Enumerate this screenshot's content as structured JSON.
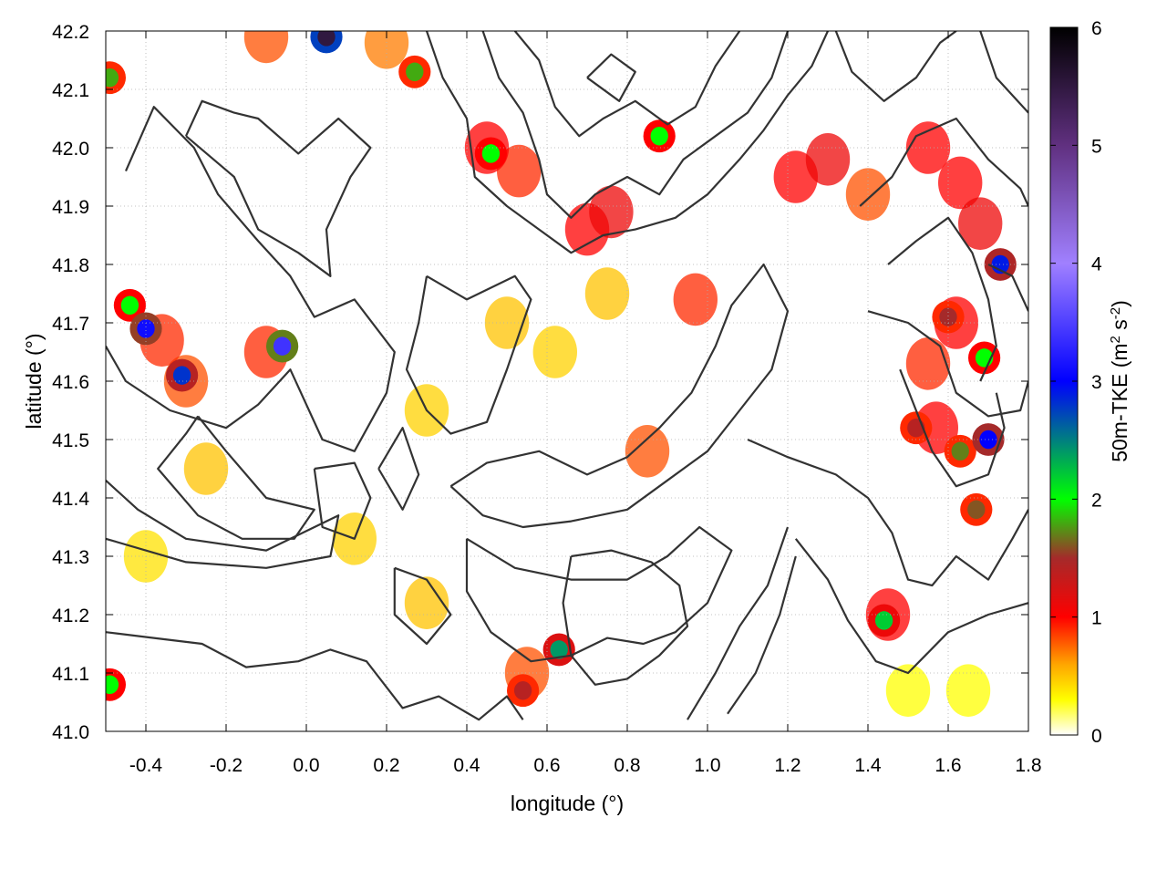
{
  "chart_data": {
    "type": "heatmap",
    "title": "",
    "xlabel": "longitude (°)",
    "ylabel": "latitude (°)",
    "colorbar_label_main": "50m-TKE (m",
    "colorbar_label_sup1": "2",
    "colorbar_label_mid": " s",
    "colorbar_label_sup2": "-2",
    "colorbar_label_end": ")",
    "xlim": [
      -0.5,
      1.8
    ],
    "ylim": [
      41.0,
      42.2
    ],
    "zlim": [
      0,
      6
    ],
    "grid": true,
    "x_ticks": [
      "-0.4",
      "-0.2",
      "0.0",
      "0.2",
      "0.4",
      "0.6",
      "0.8",
      "1.0",
      "1.2",
      "1.4",
      "1.6",
      "1.8"
    ],
    "x_tick_values": [
      -0.4,
      -0.2,
      0.0,
      0.2,
      0.4,
      0.6,
      0.8,
      1.0,
      1.2,
      1.4,
      1.6,
      1.8
    ],
    "y_ticks": [
      "41.0",
      "41.1",
      "41.2",
      "41.3",
      "41.4",
      "41.5",
      "41.6",
      "41.7",
      "41.8",
      "41.9",
      "42.0",
      "42.1",
      "42.2"
    ],
    "y_tick_values": [
      41.0,
      41.1,
      41.2,
      41.3,
      41.4,
      41.5,
      41.6,
      41.7,
      41.8,
      41.9,
      42.0,
      42.1,
      42.2
    ],
    "colorbar_ticks": [
      "0",
      "1",
      "2",
      "3",
      "4",
      "5",
      "6"
    ],
    "colorbar_tick_values": [
      0,
      1,
      2,
      3,
      4,
      5,
      6
    ],
    "colormap": [
      {
        "value": 0.0,
        "color": "#ffffff"
      },
      {
        "value": 0.3,
        "color": "#ffff00"
      },
      {
        "value": 0.6,
        "color": "#ffa500"
      },
      {
        "value": 1.0,
        "color": "#ff0000"
      },
      {
        "value": 1.5,
        "color": "#a52a2a"
      },
      {
        "value": 2.0,
        "color": "#00ff00"
      },
      {
        "value": 3.0,
        "color": "#0000ff"
      },
      {
        "value": 4.0,
        "color": "#a080ff"
      },
      {
        "value": 5.0,
        "color": "#603080"
      },
      {
        "value": 6.0,
        "color": "#000000"
      }
    ],
    "hotspots": [
      {
        "lon": -0.4,
        "lat": 41.69,
        "value": 3.1
      },
      {
        "lon": -0.44,
        "lat": 41.73,
        "value": 2.0
      },
      {
        "lon": -0.31,
        "lat": 41.61,
        "value": 2.8
      },
      {
        "lon": -0.06,
        "lat": 41.66,
        "value": 3.4
      },
      {
        "lon": 0.05,
        "lat": 42.19,
        "value": 5.5
      },
      {
        "lon": 0.46,
        "lat": 41.99,
        "value": 2.0
      },
      {
        "lon": 0.27,
        "lat": 42.13,
        "value": 1.8
      },
      {
        "lon": 0.63,
        "lat": 41.14,
        "value": 2.4
      },
      {
        "lon": 0.88,
        "lat": 42.02,
        "value": 2.0
      },
      {
        "lon": 1.44,
        "lat": 41.19,
        "value": 2.2
      },
      {
        "lon": 1.73,
        "lat": 41.8,
        "value": 2.9
      },
      {
        "lon": 1.7,
        "lat": 41.5,
        "value": 3.0
      },
      {
        "lon": 1.69,
        "lat": 41.64,
        "value": 2.0
      },
      {
        "lon": 1.6,
        "lat": 41.71,
        "value": 1.5
      },
      {
        "lon": -0.49,
        "lat": 41.08,
        "value": 2.0
      },
      {
        "lon": -0.49,
        "lat": 42.12,
        "value": 1.8
      },
      {
        "lon": 0.54,
        "lat": 41.07,
        "value": 1.4
      },
      {
        "lon": 1.52,
        "lat": 41.52,
        "value": 1.4
      },
      {
        "lon": 1.63,
        "lat": 41.48,
        "value": 1.7
      },
      {
        "lon": 1.67,
        "lat": 41.38,
        "value": 1.6
      }
    ],
    "regions": [
      {
        "lon": -0.36,
        "lat": 41.67,
        "value": 0.9
      },
      {
        "lon": -0.3,
        "lat": 41.6,
        "value": 0.8
      },
      {
        "lon": -0.1,
        "lat": 41.65,
        "value": 0.9
      },
      {
        "lon": 0.45,
        "lat": 42.0,
        "value": 1.0
      },
      {
        "lon": 0.53,
        "lat": 41.96,
        "value": 0.9
      },
      {
        "lon": 0.7,
        "lat": 41.86,
        "value": 1.0
      },
      {
        "lon": 0.76,
        "lat": 41.89,
        "value": 1.1
      },
      {
        "lon": 0.97,
        "lat": 41.74,
        "value": 0.9
      },
      {
        "lon": 1.22,
        "lat": 41.95,
        "value": 1.0
      },
      {
        "lon": 1.3,
        "lat": 41.98,
        "value": 1.1
      },
      {
        "lon": 1.4,
        "lat": 41.92,
        "value": 0.8
      },
      {
        "lon": 1.55,
        "lat": 42.0,
        "value": 1.0
      },
      {
        "lon": 1.63,
        "lat": 41.94,
        "value": 1.0
      },
      {
        "lon": 1.68,
        "lat": 41.87,
        "value": 1.1
      },
      {
        "lon": 1.62,
        "lat": 41.7,
        "value": 1.0
      },
      {
        "lon": 1.55,
        "lat": 41.63,
        "value": 0.9
      },
      {
        "lon": 1.57,
        "lat": 41.52,
        "value": 1.0
      },
      {
        "lon": 1.45,
        "lat": 41.2,
        "value": 1.0
      },
      {
        "lon": 0.5,
        "lat": 41.7,
        "value": 0.5
      },
      {
        "lon": 0.62,
        "lat": 41.65,
        "value": 0.45
      },
      {
        "lon": 0.75,
        "lat": 41.75,
        "value": 0.5
      },
      {
        "lon": 1.5,
        "lat": 41.07,
        "value": 0.3
      },
      {
        "lon": 1.65,
        "lat": 41.07,
        "value": 0.3
      },
      {
        "lon": -0.25,
        "lat": 41.45,
        "value": 0.5
      },
      {
        "lon": 0.3,
        "lat": 41.55,
        "value": 0.45
      },
      {
        "lon": 0.85,
        "lat": 41.48,
        "value": 0.8
      },
      {
        "lon": 0.3,
        "lat": 41.22,
        "value": 0.5
      },
      {
        "lon": 0.55,
        "lat": 41.1,
        "value": 0.8
      },
      {
        "lon": 0.2,
        "lat": 42.18,
        "value": 0.7
      },
      {
        "lon": -0.1,
        "lat": 42.19,
        "value": 0.8
      },
      {
        "lon": 0.12,
        "lat": 41.33,
        "value": 0.45
      },
      {
        "lon": -0.4,
        "lat": 41.3,
        "value": 0.4
      }
    ],
    "contours": [
      [
        [
          -0.3,
          42.02
        ],
        [
          -0.18,
          41.95
        ],
        [
          -0.12,
          41.86
        ],
        [
          -0.02,
          41.82
        ],
        [
          0.06,
          41.78
        ],
        [
          0.05,
          41.86
        ],
        [
          0.11,
          41.95
        ],
        [
          0.16,
          42.0
        ],
        [
          0.08,
          42.05
        ],
        [
          -0.02,
          41.99
        ],
        [
          -0.12,
          42.05
        ],
        [
          -0.18,
          42.06
        ],
        [
          -0.26,
          42.08
        ],
        [
          -0.3,
          42.02
        ]
      ],
      [
        [
          -0.45,
          41.96
        ],
        [
          -0.38,
          42.07
        ],
        [
          -0.28,
          42.0
        ],
        [
          -0.22,
          41.92
        ],
        [
          -0.12,
          41.84
        ],
        [
          -0.04,
          41.78
        ],
        [
          0.02,
          41.71
        ],
        [
          0.12,
          41.74
        ],
        [
          0.22,
          41.65
        ],
        [
          0.2,
          41.58
        ],
        [
          0.12,
          41.48
        ],
        [
          0.04,
          41.5
        ],
        [
          -0.04,
          41.62
        ],
        [
          -0.12,
          41.56
        ],
        [
          -0.2,
          41.52
        ],
        [
          -0.34,
          41.55
        ],
        [
          -0.45,
          41.6
        ],
        [
          -0.5,
          41.66
        ]
      ],
      [
        [
          -0.27,
          41.54
        ],
        [
          -0.2,
          41.48
        ],
        [
          -0.1,
          41.4
        ],
        [
          0.02,
          41.38
        ],
        [
          -0.03,
          41.33
        ],
        [
          -0.16,
          41.33
        ],
        [
          -0.27,
          41.37
        ],
        [
          -0.37,
          41.45
        ],
        [
          -0.3,
          41.51
        ],
        [
          -0.27,
          41.54
        ]
      ],
      [
        [
          -0.5,
          41.43
        ],
        [
          -0.42,
          41.38
        ],
        [
          -0.3,
          41.33
        ],
        [
          -0.1,
          41.31
        ],
        [
          0.08,
          41.37
        ],
        [
          0.06,
          41.3
        ],
        [
          -0.1,
          41.28
        ],
        [
          -0.3,
          41.29
        ],
        [
          -0.5,
          41.33
        ]
      ],
      [
        [
          -0.5,
          41.17
        ],
        [
          -0.38,
          41.16
        ],
        [
          -0.26,
          41.15
        ],
        [
          -0.15,
          41.11
        ],
        [
          -0.02,
          41.12
        ],
        [
          0.06,
          41.14
        ],
        [
          0.15,
          41.12
        ],
        [
          0.24,
          41.04
        ],
        [
          0.33,
          41.06
        ],
        [
          0.43,
          41.02
        ],
        [
          0.5,
          41.06
        ],
        [
          0.54,
          41.02
        ]
      ],
      [
        [
          0.3,
          41.78
        ],
        [
          0.4,
          41.74
        ],
        [
          0.52,
          41.78
        ],
        [
          0.56,
          41.74
        ],
        [
          0.5,
          41.62
        ],
        [
          0.45,
          41.53
        ],
        [
          0.36,
          41.51
        ],
        [
          0.3,
          41.55
        ],
        [
          0.25,
          41.62
        ],
        [
          0.28,
          41.7
        ],
        [
          0.3,
          41.78
        ]
      ],
      [
        [
          0.36,
          41.42
        ],
        [
          0.45,
          41.46
        ],
        [
          0.58,
          41.48
        ],
        [
          0.7,
          41.44
        ],
        [
          0.8,
          41.47
        ],
        [
          0.88,
          41.52
        ],
        [
          0.96,
          41.58
        ],
        [
          1.02,
          41.66
        ],
        [
          1.06,
          41.73
        ],
        [
          1.14,
          41.8
        ],
        [
          1.2,
          41.72
        ],
        [
          1.16,
          41.62
        ],
        [
          1.08,
          41.55
        ],
        [
          1.0,
          41.48
        ],
        [
          0.9,
          41.43
        ],
        [
          0.8,
          41.38
        ],
        [
          0.66,
          41.36
        ],
        [
          0.54,
          41.35
        ],
        [
          0.44,
          41.37
        ],
        [
          0.36,
          41.42
        ]
      ],
      [
        [
          0.4,
          41.33
        ],
        [
          0.52,
          41.28
        ],
        [
          0.66,
          41.26
        ],
        [
          0.8,
          41.26
        ],
        [
          0.9,
          41.3
        ],
        [
          0.98,
          41.35
        ],
        [
          1.06,
          41.31
        ],
        [
          1.0,
          41.22
        ],
        [
          0.92,
          41.17
        ],
        [
          0.84,
          41.15
        ],
        [
          0.75,
          41.16
        ],
        [
          0.66,
          41.13
        ],
        [
          0.56,
          41.12
        ],
        [
          0.46,
          41.17
        ],
        [
          0.4,
          41.24
        ],
        [
          0.4,
          41.33
        ]
      ],
      [
        [
          0.66,
          41.3
        ],
        [
          0.76,
          41.31
        ],
        [
          0.86,
          41.29
        ],
        [
          0.93,
          41.25
        ],
        [
          0.95,
          41.18
        ],
        [
          0.88,
          41.13
        ],
        [
          0.8,
          41.09
        ],
        [
          0.72,
          41.08
        ],
        [
          0.66,
          41.13
        ],
        [
          0.64,
          41.22
        ],
        [
          0.66,
          41.3
        ]
      ],
      [
        [
          1.1,
          41.5
        ],
        [
          1.2,
          41.47
        ],
        [
          1.32,
          41.44
        ],
        [
          1.4,
          41.4
        ],
        [
          1.46,
          41.34
        ],
        [
          1.5,
          41.26
        ],
        [
          1.56,
          41.25
        ],
        [
          1.62,
          41.3
        ],
        [
          1.7,
          41.26
        ],
        [
          1.76,
          41.33
        ],
        [
          1.8,
          41.38
        ]
      ],
      [
        [
          1.2,
          41.35
        ],
        [
          1.15,
          41.25
        ],
        [
          1.08,
          41.18
        ],
        [
          1.02,
          41.1
        ],
        [
          0.95,
          41.02
        ]
      ],
      [
        [
          1.22,
          41.33
        ],
        [
          1.3,
          41.26
        ],
        [
          1.35,
          41.19
        ],
        [
          1.42,
          41.12
        ],
        [
          1.5,
          41.1
        ],
        [
          1.6,
          41.17
        ],
        [
          1.7,
          41.2
        ],
        [
          1.8,
          41.22
        ]
      ],
      [
        [
          1.05,
          41.03
        ],
        [
          1.12,
          41.1
        ],
        [
          1.18,
          41.2
        ],
        [
          1.22,
          41.3
        ]
      ],
      [
        [
          1.38,
          41.9
        ],
        [
          1.46,
          41.95
        ],
        [
          1.52,
          42.02
        ],
        [
          1.62,
          42.05
        ],
        [
          1.7,
          41.98
        ],
        [
          1.78,
          41.93
        ],
        [
          1.8,
          41.9
        ]
      ],
      [
        [
          1.4,
          41.72
        ],
        [
          1.5,
          41.7
        ],
        [
          1.58,
          41.66
        ],
        [
          1.62,
          41.58
        ],
        [
          1.7,
          41.54
        ],
        [
          1.78,
          41.55
        ],
        [
          1.8,
          41.6
        ]
      ],
      [
        [
          1.45,
          41.8
        ],
        [
          1.52,
          41.84
        ],
        [
          1.6,
          41.88
        ],
        [
          1.66,
          41.82
        ],
        [
          1.7,
          41.74
        ],
        [
          1.72,
          41.66
        ],
        [
          1.68,
          41.6
        ]
      ],
      [
        [
          1.48,
          41.62
        ],
        [
          1.52,
          41.55
        ],
        [
          1.56,
          41.48
        ],
        [
          1.62,
          41.42
        ],
        [
          1.7,
          41.44
        ],
        [
          1.74,
          41.52
        ],
        [
          1.72,
          41.58
        ]
      ],
      [
        [
          0.52,
          42.2
        ],
        [
          0.58,
          42.15
        ],
        [
          0.62,
          42.07
        ],
        [
          0.68,
          42.02
        ],
        [
          0.74,
          42.05
        ],
        [
          0.82,
          42.08
        ],
        [
          0.9,
          42.04
        ],
        [
          0.97,
          42.07
        ],
        [
          1.02,
          42.14
        ],
        [
          1.08,
          42.2
        ]
      ],
      [
        [
          0.44,
          42.2
        ],
        [
          0.48,
          42.12
        ],
        [
          0.54,
          42.06
        ],
        [
          0.58,
          41.98
        ],
        [
          0.6,
          41.92
        ],
        [
          0.66,
          41.88
        ],
        [
          0.72,
          41.92
        ],
        [
          0.8,
          41.95
        ],
        [
          0.88,
          41.92
        ],
        [
          0.94,
          41.98
        ],
        [
          1.02,
          42.02
        ],
        [
          1.1,
          42.06
        ],
        [
          1.16,
          42.12
        ],
        [
          1.2,
          42.2
        ]
      ],
      [
        [
          0.3,
          42.2
        ],
        [
          0.34,
          42.12
        ],
        [
          0.4,
          42.05
        ],
        [
          0.42,
          41.95
        ],
        [
          0.5,
          41.9
        ],
        [
          0.58,
          41.86
        ],
        [
          0.66,
          41.82
        ],
        [
          0.74,
          41.85
        ],
        [
          0.82,
          41.86
        ],
        [
          0.92,
          41.88
        ],
        [
          1.0,
          41.92
        ],
        [
          1.08,
          41.98
        ],
        [
          1.14,
          42.03
        ],
        [
          1.2,
          42.09
        ],
        [
          1.26,
          42.14
        ],
        [
          1.3,
          42.2
        ]
      ],
      [
        [
          0.7,
          42.12
        ],
        [
          0.76,
          42.16
        ],
        [
          0.82,
          42.13
        ],
        [
          0.78,
          42.08
        ],
        [
          0.7,
          42.12
        ]
      ],
      [
        [
          1.32,
          42.2
        ],
        [
          1.36,
          42.13
        ],
        [
          1.44,
          42.08
        ],
        [
          1.52,
          42.12
        ],
        [
          1.58,
          42.18
        ],
        [
          1.62,
          42.2
        ]
      ],
      [
        [
          1.68,
          42.2
        ],
        [
          1.72,
          42.12
        ],
        [
          1.8,
          42.06
        ]
      ],
      [
        [
          0.02,
          41.45
        ],
        [
          0.12,
          41.46
        ],
        [
          0.16,
          41.4
        ],
        [
          0.12,
          41.33
        ],
        [
          0.04,
          41.35
        ],
        [
          0.02,
          41.45
        ]
      ],
      [
        [
          0.18,
          41.45
        ],
        [
          0.24,
          41.52
        ],
        [
          0.28,
          41.44
        ],
        [
          0.24,
          41.38
        ],
        [
          0.18,
          41.45
        ]
      ],
      [
        [
          1.7,
          41.8
        ],
        [
          1.76,
          41.78
        ],
        [
          1.8,
          41.72
        ]
      ],
      [
        [
          0.22,
          41.28
        ],
        [
          0.3,
          41.26
        ],
        [
          0.36,
          41.2
        ],
        [
          0.3,
          41.15
        ],
        [
          0.22,
          41.2
        ],
        [
          0.22,
          41.28
        ]
      ]
    ]
  }
}
